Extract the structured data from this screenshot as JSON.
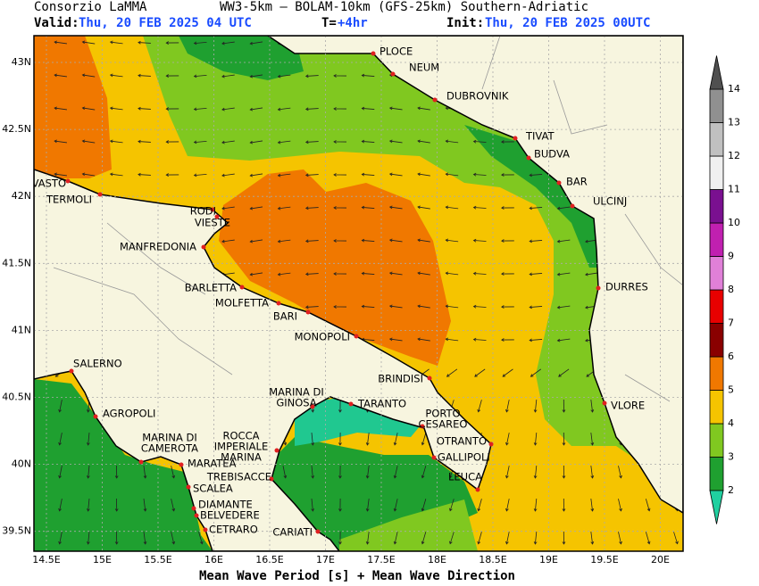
{
  "header": {
    "org": "Consorzio LaMMA",
    "model": "WW3-5km – BOLAM-10km (GFS-25km) Southern-Adriatic",
    "valid_label": "Valid:",
    "valid_time": "Thu, 20 FEB 2025  04 UTC",
    "step_label": "T=",
    "step": "+4hr",
    "init_label": "Init:",
    "init_time": "Thu, 20 FEB 2025 00UTC"
  },
  "map": {
    "lat_ticks": [
      "43N",
      "42.5N",
      "42N",
      "41.5N",
      "41N",
      "40.5N",
      "40N",
      "39.5N"
    ],
    "lon_ticks": [
      "14.5E",
      "15E",
      "15.5E",
      "16E",
      "16.5E",
      "17E",
      "17.5E",
      "18E",
      "18.5E",
      "19E",
      "19.5E",
      "20E"
    ],
    "cities": [
      {
        "name": "PLOCE"
      },
      {
        "name": "NEUM"
      },
      {
        "name": "DUBROVNIK"
      },
      {
        "name": "TIVAT"
      },
      {
        "name": "BUDVA"
      },
      {
        "name": "BAR"
      },
      {
        "name": "ULCINJ"
      },
      {
        "name": "DURRES"
      },
      {
        "name": "VLORE"
      },
      {
        "name": "VASTO"
      },
      {
        "name": "TERMOLI"
      },
      {
        "name": "RODI"
      },
      {
        "name": "VIESTE"
      },
      {
        "name": "MANFREDONIA"
      },
      {
        "name": "BARLETTA"
      },
      {
        "name": "MOLFETTA"
      },
      {
        "name": "BARI"
      },
      {
        "name": "MONOPOLI"
      },
      {
        "name": "BRINDISI"
      },
      {
        "name": "SALERNO"
      },
      {
        "name": "AGROPOLI"
      },
      {
        "name": [
          "MARINA DI",
          "CAMEROTA"
        ]
      },
      {
        "name": "MARATEA"
      },
      {
        "name": "SCALEA"
      },
      {
        "name": "DIAMANTE"
      },
      {
        "name": "BELVEDERE"
      },
      {
        "name": "CETRARO"
      },
      {
        "name": [
          "MARINA DI",
          "GINOSA"
        ]
      },
      {
        "name": "TARANTO"
      },
      {
        "name": [
          "PORTO",
          "CESAREO"
        ]
      },
      {
        "name": "OTRANTO"
      },
      {
        "name": "GALLIPOLI"
      },
      {
        "name": "LEUCA"
      },
      {
        "name": [
          "ROCCA",
          "IMPERIALE",
          "MARINA"
        ]
      },
      {
        "name": "TREBISACCE"
      },
      {
        "name": "CARIATI"
      }
    ]
  },
  "colorbar": {
    "levels": [
      2,
      3,
      4,
      5,
      6,
      7,
      8,
      9,
      10,
      11,
      12,
      13,
      14
    ],
    "colors": [
      "#1fa030",
      "#80c820",
      "#f5c400",
      "#f07800",
      "#8a0000",
      "#e80000",
      "#e080d8",
      "#c020b0",
      "#7a1090",
      "#f0f0f0",
      "#c0c0c0",
      "#909090"
    ],
    "under_color": "#20d0a0",
    "over_color": "#505050"
  },
  "footer": {
    "caption": "Mean Wave Period [s] + Mean Wave Direction"
  }
}
